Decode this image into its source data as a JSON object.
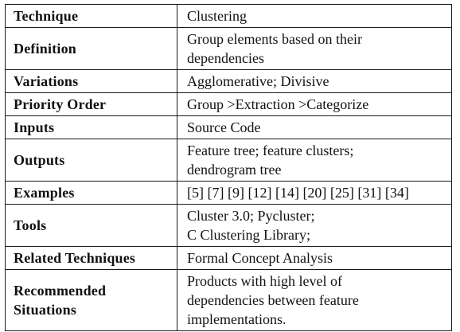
{
  "table": {
    "rows": [
      {
        "label": [
          "Technique"
        ],
        "value": [
          "Clustering"
        ]
      },
      {
        "label": [
          "Definition"
        ],
        "value": [
          "Group elements based on their",
          "dependencies"
        ]
      },
      {
        "label": [
          "Variations"
        ],
        "value": [
          "Agglomerative; Divisive"
        ]
      },
      {
        "label": [
          "Priority Order"
        ],
        "value": [
          "Group >Extraction >Categorize"
        ]
      },
      {
        "label": [
          "Inputs"
        ],
        "value": [
          "Source Code"
        ]
      },
      {
        "label": [
          "Outputs"
        ],
        "value": [
          "Feature tree; feature clusters;",
          "dendrogram tree"
        ]
      },
      {
        "label": [
          "Examples"
        ],
        "value": [
          "[5] [7] [9] [12] [14] [20] [25] [31] [34]"
        ]
      },
      {
        "label": [
          "Tools"
        ],
        "value": [
          "Cluster 3.0; Pycluster;",
          "C Clustering Library;"
        ]
      },
      {
        "label": [
          "Related Techniques"
        ],
        "value": [
          "Formal Concept Analysis"
        ]
      },
      {
        "label": [
          "Recommended",
          "Situations"
        ],
        "value": [
          "Products with high level of",
          "dependencies between feature",
          "implementations."
        ]
      }
    ]
  }
}
